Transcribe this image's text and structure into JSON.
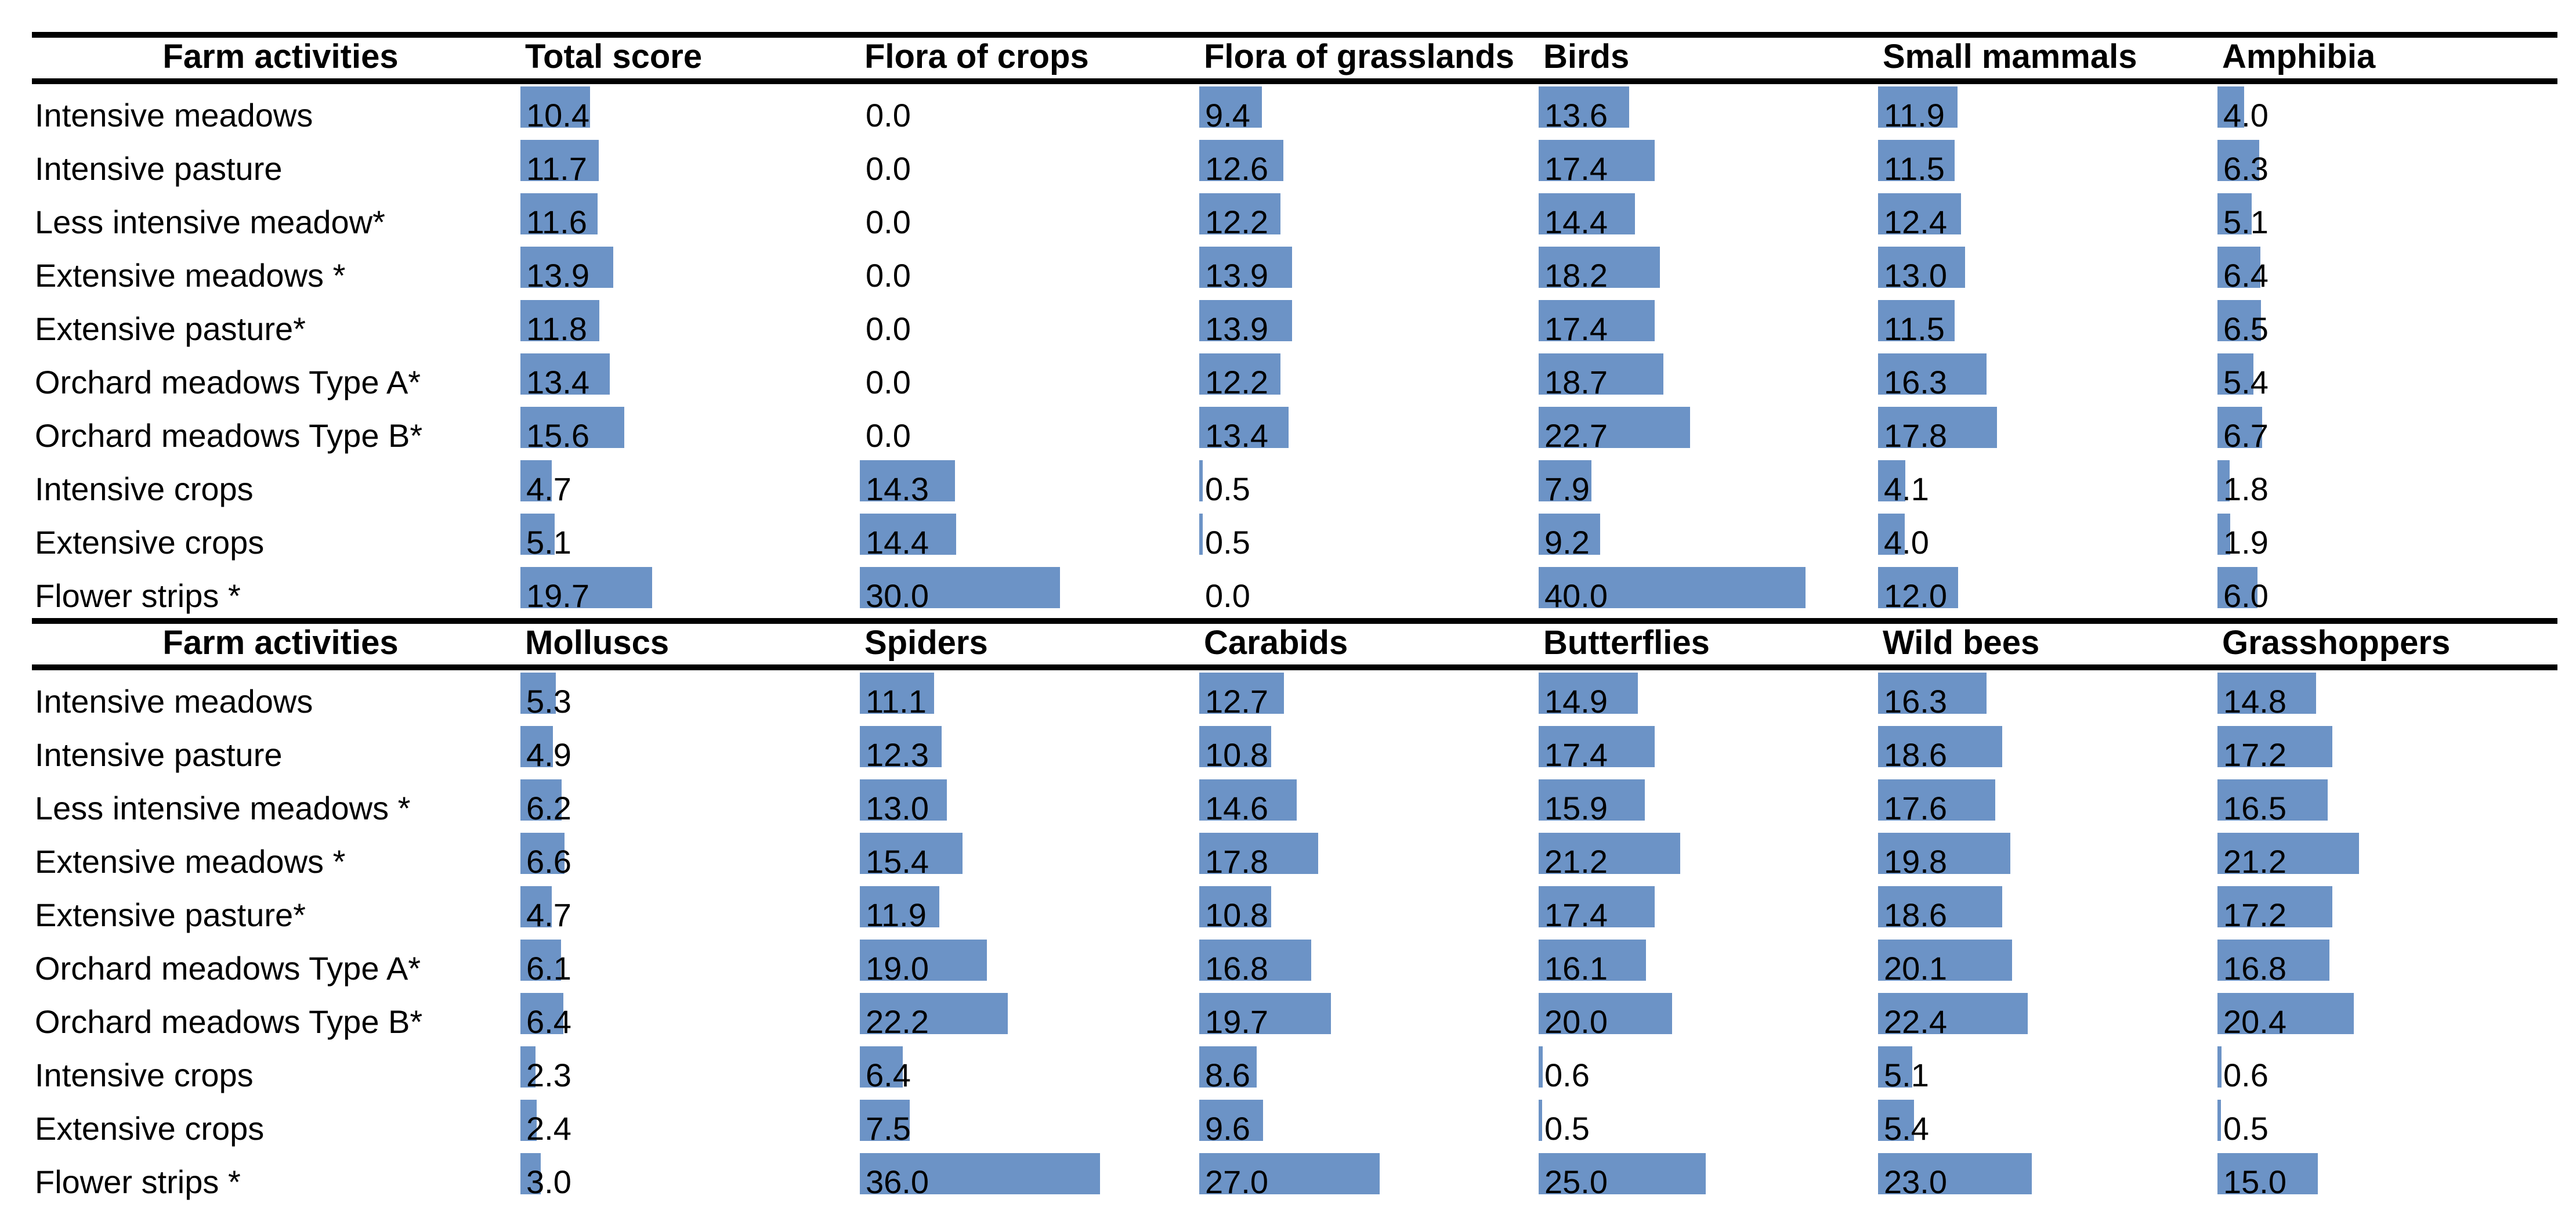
{
  "page": {
    "background": "#ffffff"
  },
  "styles": {
    "bar_color": "#6C93C6",
    "rule_color": "#000000",
    "text_color": "#000000"
  },
  "chart_data": [
    {
      "type": "bar",
      "orientation": "horizontal",
      "legend": "none",
      "grid": "off",
      "value_range": [
        0,
        40
      ],
      "row_header_label": "Farm activities",
      "columns": [
        "Total score",
        "Flora of crops",
        "Flora of grasslands",
        "Birds",
        "Small mammals",
        "Amphibia"
      ],
      "rows": [
        {
          "label": "Intensive meadows",
          "values": [
            10.4,
            0.0,
            9.4,
            13.6,
            11.9,
            4.0
          ]
        },
        {
          "label": "Intensive pasture",
          "values": [
            11.7,
            0.0,
            12.6,
            17.4,
            11.5,
            6.3
          ]
        },
        {
          "label": "Less intensive meadow*",
          "values": [
            11.6,
            0.0,
            12.2,
            14.4,
            12.4,
            5.1
          ]
        },
        {
          "label": "Extensive meadows *",
          "values": [
            13.9,
            0.0,
            13.9,
            18.2,
            13.0,
            6.4
          ]
        },
        {
          "label": "Extensive pasture*",
          "values": [
            11.8,
            0.0,
            13.9,
            17.4,
            11.5,
            6.5
          ]
        },
        {
          "label": "Orchard meadows Type A*",
          "values": [
            13.4,
            0.0,
            12.2,
            18.7,
            16.3,
            5.4
          ]
        },
        {
          "label": "Orchard meadows Type B*",
          "values": [
            15.6,
            0.0,
            13.4,
            22.7,
            17.8,
            6.7
          ]
        },
        {
          "label": "Intensive crops",
          "values": [
            4.7,
            14.3,
            0.5,
            7.9,
            4.1,
            1.8
          ]
        },
        {
          "label": "Extensive crops",
          "values": [
            5.1,
            14.4,
            0.5,
            9.2,
            4.0,
            1.9
          ]
        },
        {
          "label": "Flower strips *",
          "values": [
            19.7,
            30.0,
            0.0,
            40.0,
            12.0,
            6.0
          ]
        }
      ]
    },
    {
      "type": "bar",
      "orientation": "horizontal",
      "legend": "none",
      "grid": "off",
      "value_range": [
        0,
        40
      ],
      "row_header_label": "Farm activities",
      "columns": [
        "Molluscs",
        "Spiders",
        "Carabids",
        "Butterflies",
        "Wild bees",
        "Grasshoppers"
      ],
      "rows": [
        {
          "label": "Intensive meadows",
          "values": [
            5.3,
            11.1,
            12.7,
            14.9,
            16.3,
            14.8
          ]
        },
        {
          "label": "Intensive pasture",
          "values": [
            4.9,
            12.3,
            10.8,
            17.4,
            18.6,
            17.2
          ]
        },
        {
          "label": "Less intensive meadows *",
          "values": [
            6.2,
            13.0,
            14.6,
            15.9,
            17.6,
            16.5
          ]
        },
        {
          "label": "Extensive meadows *",
          "values": [
            6.6,
            15.4,
            17.8,
            21.2,
            19.8,
            21.2
          ]
        },
        {
          "label": "Extensive pasture*",
          "values": [
            4.7,
            11.9,
            10.8,
            17.4,
            18.6,
            17.2
          ]
        },
        {
          "label": "Orchard meadows Type A*",
          "values": [
            6.1,
            19.0,
            16.8,
            16.1,
            20.1,
            16.8
          ]
        },
        {
          "label": "Orchard meadows Type B*",
          "values": [
            6.4,
            22.2,
            19.7,
            20.0,
            22.4,
            20.4
          ]
        },
        {
          "label": "Intensive crops",
          "values": [
            2.3,
            6.4,
            8.6,
            0.6,
            5.1,
            0.6
          ]
        },
        {
          "label": "Extensive crops",
          "values": [
            2.4,
            7.5,
            9.6,
            0.5,
            5.4,
            0.5
          ]
        },
        {
          "label": "Flower strips *",
          "values": [
            3.0,
            36.0,
            27.0,
            25.0,
            23.0,
            15.0
          ]
        }
      ]
    }
  ]
}
